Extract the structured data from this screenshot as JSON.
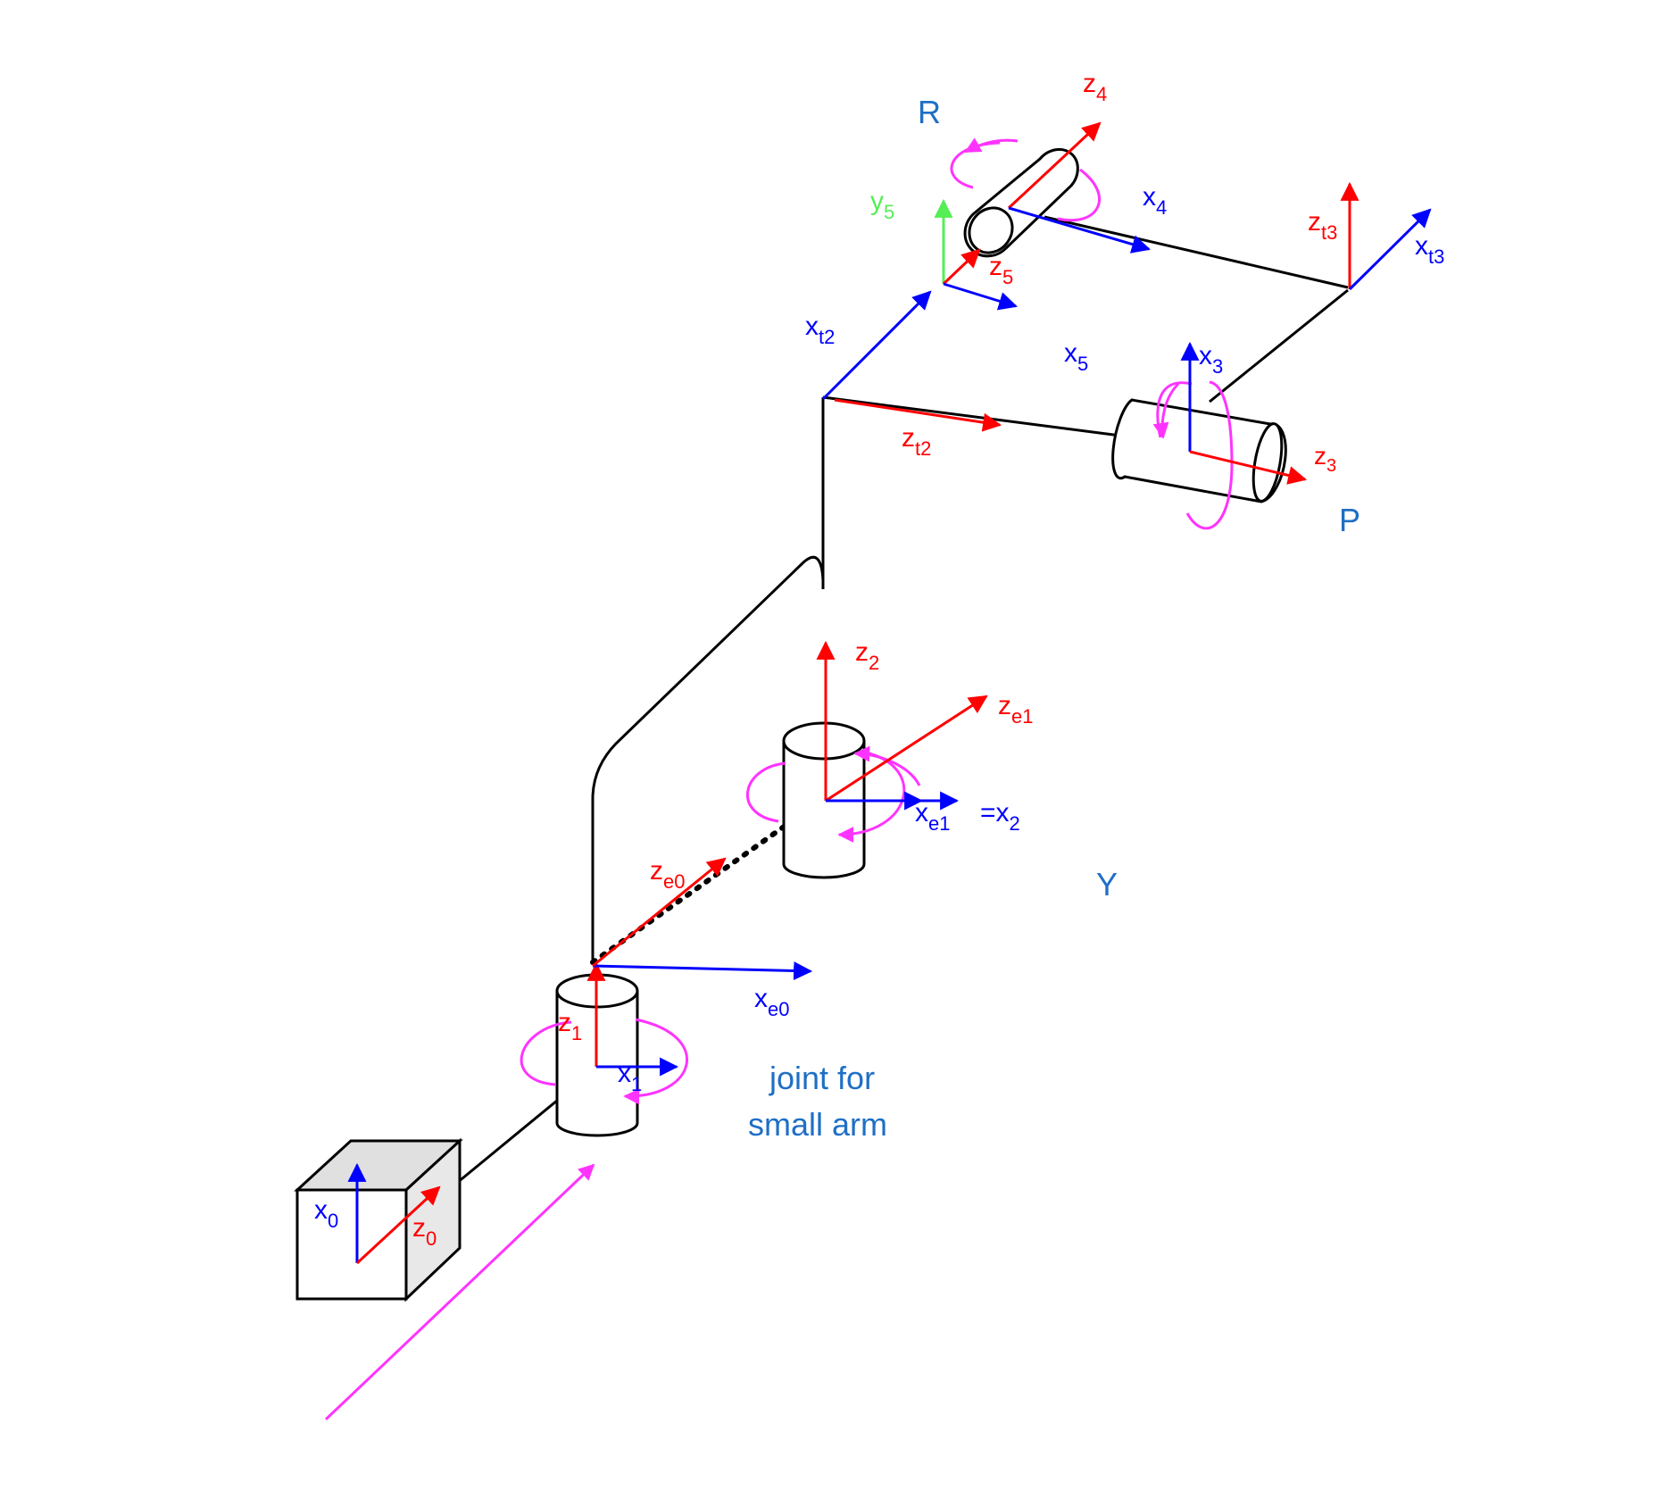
{
  "colors": {
    "z_axis": "#ff0000",
    "x_axis": "#0000ff",
    "y_axis": "#55ee55",
    "rotation": "#ff33ff",
    "link": "#000000",
    "annotation": "#1f6fc5"
  },
  "labels": {
    "R": "R",
    "P": "P",
    "Y": "Y",
    "joint_note_line1": "joint for",
    "joint_note_line2": "small arm",
    "eq_x2": "=x",
    "eq_x2_sub": "2"
  },
  "frames": {
    "z4": {
      "base": "z",
      "sub": "4"
    },
    "x4": {
      "base": "x",
      "sub": "4"
    },
    "y5": {
      "base": "y",
      "sub": "5"
    },
    "z5": {
      "base": "z",
      "sub": "5"
    },
    "x5": {
      "base": "x",
      "sub": "5"
    },
    "zt3": {
      "base": "z",
      "sub": "t3"
    },
    "xt3": {
      "base": "x",
      "sub": "t3"
    },
    "xt2": {
      "base": "x",
      "sub": "t2"
    },
    "zt2": {
      "base": "z",
      "sub": "t2"
    },
    "x3": {
      "base": "x",
      "sub": "3"
    },
    "z3": {
      "base": "z",
      "sub": "3"
    },
    "z2": {
      "base": "z",
      "sub": "2"
    },
    "ze1": {
      "base": "z",
      "sub": "e1"
    },
    "xe1": {
      "base": "x",
      "sub": "e1"
    },
    "ze0": {
      "base": "z",
      "sub": "e0"
    },
    "xe0": {
      "base": "x",
      "sub": "e0"
    },
    "z1": {
      "base": "z",
      "sub": "1"
    },
    "x1": {
      "base": "x",
      "sub": "1"
    },
    "x0": {
      "base": "x",
      "sub": "0"
    },
    "z0": {
      "base": "z",
      "sub": "0"
    }
  }
}
